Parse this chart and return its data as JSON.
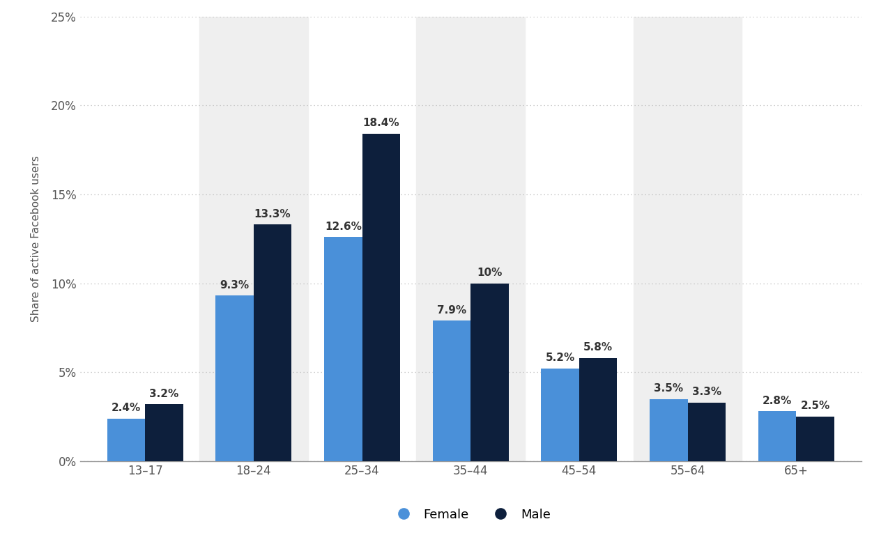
{
  "categories": [
    "13–17",
    "18–24",
    "25–34",
    "35–44",
    "45–54",
    "55–64",
    "65+"
  ],
  "female_values": [
    2.4,
    9.3,
    12.6,
    7.9,
    5.2,
    3.5,
    2.8
  ],
  "male_values": [
    3.2,
    13.3,
    18.4,
    10.0,
    5.8,
    3.3,
    2.5
  ],
  "female_labels": [
    "2.4%",
    "9.3%",
    "12.6%",
    "7.9%",
    "5.2%",
    "3.5%",
    "2.8%"
  ],
  "male_labels": [
    "3.2%",
    "13.3%",
    "18.4%",
    "10%",
    "5.8%",
    "3.3%",
    "2.5%"
  ],
  "female_color": "#4a90d9",
  "male_color": "#0d1f3c",
  "background_color": "#ffffff",
  "plot_background_color": "#efefef",
  "ylabel": "Share of active Facebook users",
  "ylim": [
    0,
    25
  ],
  "yticks": [
    0,
    5,
    10,
    15,
    20,
    25
  ],
  "ytick_labels": [
    "0%",
    "5%",
    "10%",
    "15%",
    "20%",
    "25%"
  ],
  "bar_width": 0.35,
  "legend_female": "Female",
  "legend_male": "Male",
  "grid_color": "#bbbbbb",
  "label_fontsize": 11,
  "axis_fontsize": 11,
  "legend_fontsize": 13,
  "tick_fontsize": 12,
  "shaded_groups": [
    1,
    3,
    5
  ]
}
